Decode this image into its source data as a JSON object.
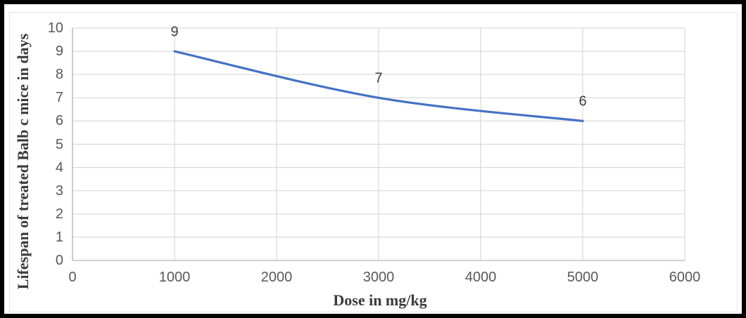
{
  "chart_data": {
    "type": "line",
    "title": "",
    "xlabel": "Dose in mg/kg",
    "ylabel": "Lifespan of treated Balb c mice in days",
    "x": [
      1000,
      3000,
      5000
    ],
    "series": [
      {
        "name": "Lifespan of treated Balb c mice",
        "values": [
          9,
          7,
          6
        ]
      }
    ],
    "data_labels": [
      "9",
      "7",
      "6"
    ],
    "xlim": [
      0,
      6000
    ],
    "ylim": [
      0,
      10
    ],
    "x_ticks": [
      0,
      1000,
      2000,
      3000,
      4000,
      5000,
      6000
    ],
    "y_ticks": [
      0,
      1,
      2,
      3,
      4,
      5,
      6,
      7,
      8,
      9,
      10
    ],
    "grid": true,
    "legend": false,
    "smooth": true,
    "line_color": "#4472C4"
  },
  "styles": {
    "grid_color": "#d9d9d9",
    "axis_color": "#c0c0c0",
    "tick_color": "#595959",
    "data_label_color": "#404040",
    "frame_color": "#000000",
    "background": "#ffffff"
  }
}
